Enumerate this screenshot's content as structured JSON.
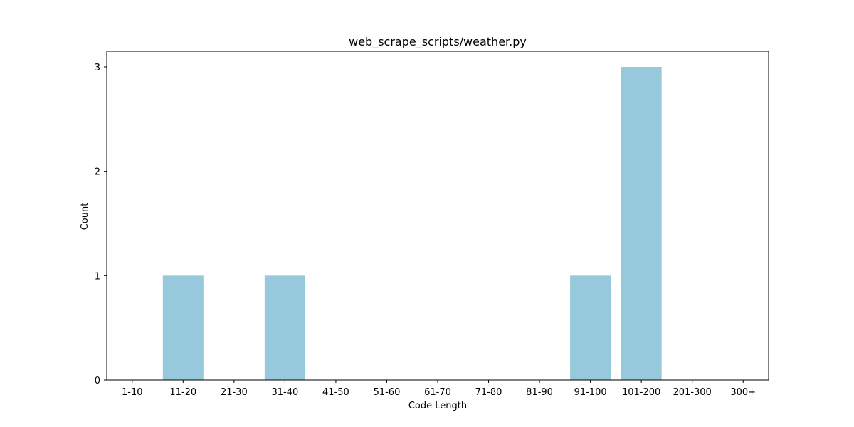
{
  "chart_data": {
    "type": "bar",
    "title": "web_scrape_scripts/weather.py",
    "xlabel": "Code Length",
    "ylabel": "Count",
    "categories": [
      "1-10",
      "11-20",
      "21-30",
      "31-40",
      "41-50",
      "51-60",
      "61-70",
      "71-80",
      "81-90",
      "91-100",
      "101-200",
      "201-300",
      "300+"
    ],
    "values": [
      0,
      1,
      0,
      1,
      0,
      0,
      0,
      0,
      0,
      1,
      3,
      0,
      0
    ],
    "yticks": [
      0,
      1,
      2,
      3
    ],
    "ylim": [
      0,
      3.15
    ],
    "grid": false,
    "legend": "none",
    "bar_color": "#96c9dc"
  }
}
